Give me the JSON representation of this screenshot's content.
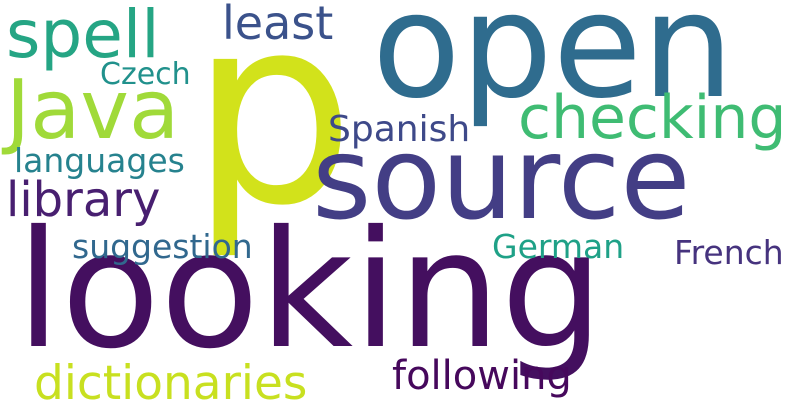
{
  "words": [
    {
      "text": "p",
      "color": "#d2e21b"
    },
    {
      "text": "open",
      "color": "#2f6c8e"
    },
    {
      "text": "source",
      "color": "#433e85"
    },
    {
      "text": "looking",
      "color": "#440f5f"
    },
    {
      "text": "spell",
      "color": "#25a584"
    },
    {
      "text": "Java",
      "color": "#a0da39"
    },
    {
      "text": "least",
      "color": "#3b528b"
    },
    {
      "text": "checking",
      "color": "#3fbc73"
    },
    {
      "text": "Czech",
      "color": "#21918c"
    },
    {
      "text": "Spanish",
      "color": "#3e4989"
    },
    {
      "text": "languages",
      "color": "#26828e"
    },
    {
      "text": "library",
      "color": "#481f70"
    },
    {
      "text": "suggestion",
      "color": "#31688e"
    },
    {
      "text": "German",
      "color": "#1fa187"
    },
    {
      "text": "French",
      "color": "#46337e"
    },
    {
      "text": "dictionaries",
      "color": "#c8e020"
    },
    {
      "text": "following",
      "color": "#46085c"
    }
  ]
}
